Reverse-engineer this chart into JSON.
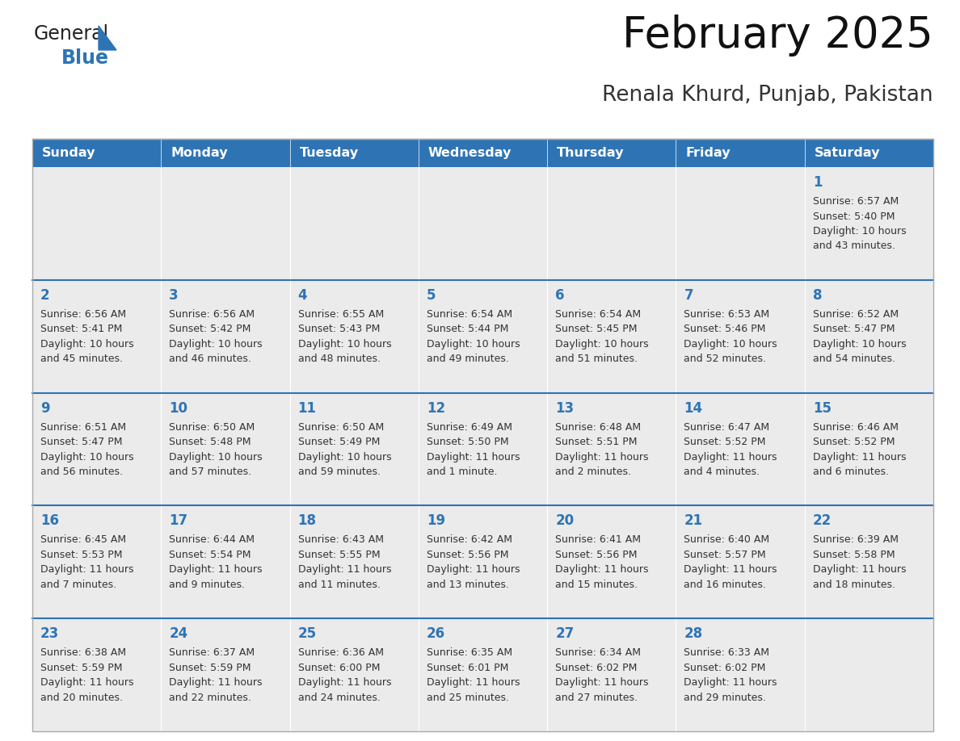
{
  "title": "February 2025",
  "subtitle": "Renala Khurd, Punjab, Pakistan",
  "header_bg": "#2E74B5",
  "header_text": "#FFFFFF",
  "cell_bg": "#EBEBEB",
  "cell_border_color": "#2E74B5",
  "outer_border_color": "#AAAAAA",
  "day_number_color": "#2E74B5",
  "text_color": "#333333",
  "days_of_week": [
    "Sunday",
    "Monday",
    "Tuesday",
    "Wednesday",
    "Thursday",
    "Friday",
    "Saturday"
  ],
  "calendar": [
    [
      {
        "day": null,
        "sunrise": null,
        "sunset": null,
        "daylight": null
      },
      {
        "day": null,
        "sunrise": null,
        "sunset": null,
        "daylight": null
      },
      {
        "day": null,
        "sunrise": null,
        "sunset": null,
        "daylight": null
      },
      {
        "day": null,
        "sunrise": null,
        "sunset": null,
        "daylight": null
      },
      {
        "day": null,
        "sunrise": null,
        "sunset": null,
        "daylight": null
      },
      {
        "day": null,
        "sunrise": null,
        "sunset": null,
        "daylight": null
      },
      {
        "day": 1,
        "sunrise": "6:57 AM",
        "sunset": "5:40 PM",
        "daylight": "10 hours and 43 minutes."
      }
    ],
    [
      {
        "day": 2,
        "sunrise": "6:56 AM",
        "sunset": "5:41 PM",
        "daylight": "10 hours and 45 minutes."
      },
      {
        "day": 3,
        "sunrise": "6:56 AM",
        "sunset": "5:42 PM",
        "daylight": "10 hours and 46 minutes."
      },
      {
        "day": 4,
        "sunrise": "6:55 AM",
        "sunset": "5:43 PM",
        "daylight": "10 hours and 48 minutes."
      },
      {
        "day": 5,
        "sunrise": "6:54 AM",
        "sunset": "5:44 PM",
        "daylight": "10 hours and 49 minutes."
      },
      {
        "day": 6,
        "sunrise": "6:54 AM",
        "sunset": "5:45 PM",
        "daylight": "10 hours and 51 minutes."
      },
      {
        "day": 7,
        "sunrise": "6:53 AM",
        "sunset": "5:46 PM",
        "daylight": "10 hours and 52 minutes."
      },
      {
        "day": 8,
        "sunrise": "6:52 AM",
        "sunset": "5:47 PM",
        "daylight": "10 hours and 54 minutes."
      }
    ],
    [
      {
        "day": 9,
        "sunrise": "6:51 AM",
        "sunset": "5:47 PM",
        "daylight": "10 hours and 56 minutes."
      },
      {
        "day": 10,
        "sunrise": "6:50 AM",
        "sunset": "5:48 PM",
        "daylight": "10 hours and 57 minutes."
      },
      {
        "day": 11,
        "sunrise": "6:50 AM",
        "sunset": "5:49 PM",
        "daylight": "10 hours and 59 minutes."
      },
      {
        "day": 12,
        "sunrise": "6:49 AM",
        "sunset": "5:50 PM",
        "daylight": "11 hours and 1 minute."
      },
      {
        "day": 13,
        "sunrise": "6:48 AM",
        "sunset": "5:51 PM",
        "daylight": "11 hours and 2 minutes."
      },
      {
        "day": 14,
        "sunrise": "6:47 AM",
        "sunset": "5:52 PM",
        "daylight": "11 hours and 4 minutes."
      },
      {
        "day": 15,
        "sunrise": "6:46 AM",
        "sunset": "5:52 PM",
        "daylight": "11 hours and 6 minutes."
      }
    ],
    [
      {
        "day": 16,
        "sunrise": "6:45 AM",
        "sunset": "5:53 PM",
        "daylight": "11 hours and 7 minutes."
      },
      {
        "day": 17,
        "sunrise": "6:44 AM",
        "sunset": "5:54 PM",
        "daylight": "11 hours and 9 minutes."
      },
      {
        "day": 18,
        "sunrise": "6:43 AM",
        "sunset": "5:55 PM",
        "daylight": "11 hours and 11 minutes."
      },
      {
        "day": 19,
        "sunrise": "6:42 AM",
        "sunset": "5:56 PM",
        "daylight": "11 hours and 13 minutes."
      },
      {
        "day": 20,
        "sunrise": "6:41 AM",
        "sunset": "5:56 PM",
        "daylight": "11 hours and 15 minutes."
      },
      {
        "day": 21,
        "sunrise": "6:40 AM",
        "sunset": "5:57 PM",
        "daylight": "11 hours and 16 minutes."
      },
      {
        "day": 22,
        "sunrise": "6:39 AM",
        "sunset": "5:58 PM",
        "daylight": "11 hours and 18 minutes."
      }
    ],
    [
      {
        "day": 23,
        "sunrise": "6:38 AM",
        "sunset": "5:59 PM",
        "daylight": "11 hours and 20 minutes."
      },
      {
        "day": 24,
        "sunrise": "6:37 AM",
        "sunset": "5:59 PM",
        "daylight": "11 hours and 22 minutes."
      },
      {
        "day": 25,
        "sunrise": "6:36 AM",
        "sunset": "6:00 PM",
        "daylight": "11 hours and 24 minutes."
      },
      {
        "day": 26,
        "sunrise": "6:35 AM",
        "sunset": "6:01 PM",
        "daylight": "11 hours and 25 minutes."
      },
      {
        "day": 27,
        "sunrise": "6:34 AM",
        "sunset": "6:02 PM",
        "daylight": "11 hours and 27 minutes."
      },
      {
        "day": 28,
        "sunrise": "6:33 AM",
        "sunset": "6:02 PM",
        "daylight": "11 hours and 29 minutes."
      },
      {
        "day": null,
        "sunrise": null,
        "sunset": null,
        "daylight": null
      }
    ]
  ],
  "logo_color_general": "#222222",
  "logo_color_blue": "#2E74B5",
  "title_fontsize": 38,
  "subtitle_fontsize": 19,
  "header_fontsize": 11.5,
  "day_number_fontsize": 12,
  "cell_text_fontsize": 9.0
}
